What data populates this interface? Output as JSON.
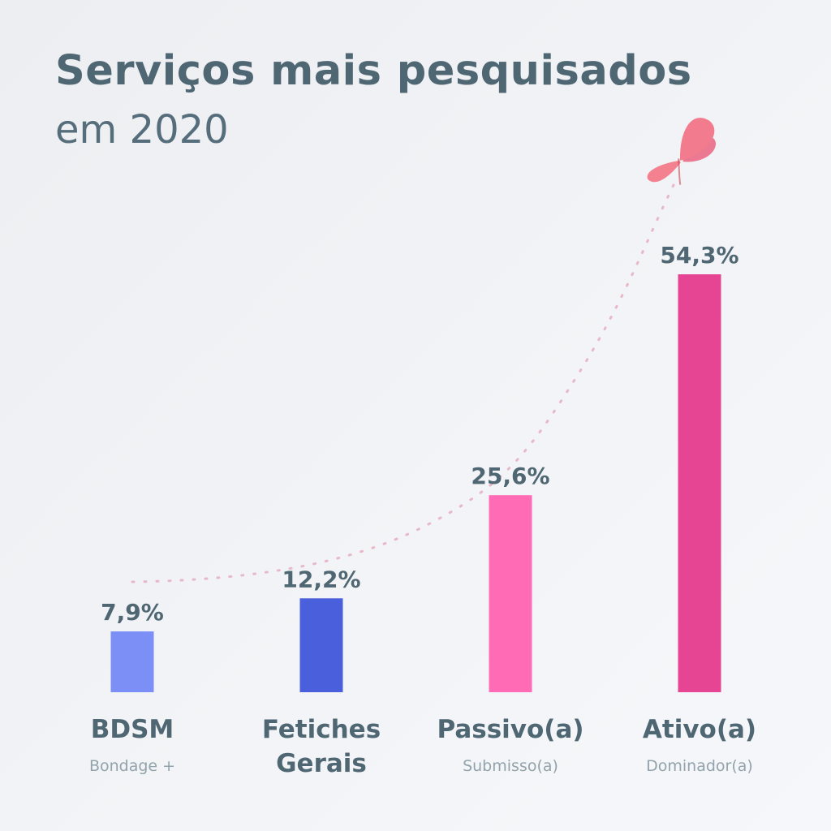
{
  "title": "Serviços mais pesquisados",
  "subtitle": "em 2020",
  "icons": {
    "decoration": "butterfly-icon"
  },
  "chart_data": {
    "type": "bar",
    "title": "Serviços mais pesquisados",
    "subtitle": "em 2020",
    "categories": [
      "BDSM",
      "Fetiches Gerais",
      "Passivo(a)",
      "Ativo(a)"
    ],
    "category_lines": [
      [
        "BDSM"
      ],
      [
        "Fetiches",
        "Gerais"
      ],
      [
        "Passivo(a)"
      ],
      [
        "Ativo(a)"
      ]
    ],
    "subcategories": [
      "Bondage +",
      "",
      "Submisso(a)",
      "Dominador(a)"
    ],
    "values": [
      7.9,
      12.2,
      25.6,
      54.3
    ],
    "value_labels": [
      "7,9%",
      "12,2%",
      "25,6%",
      "54,3%"
    ],
    "colors": [
      "#7b8ff7",
      "#4a5fdc",
      "#ff6cb5",
      "#e64593"
    ],
    "unit": "%",
    "ylim": [
      0,
      54.3
    ],
    "grid": false,
    "legend": "none",
    "trend_line": "dotted",
    "trend_color": "#e8b8c9",
    "xlabel": "",
    "ylabel": ""
  }
}
